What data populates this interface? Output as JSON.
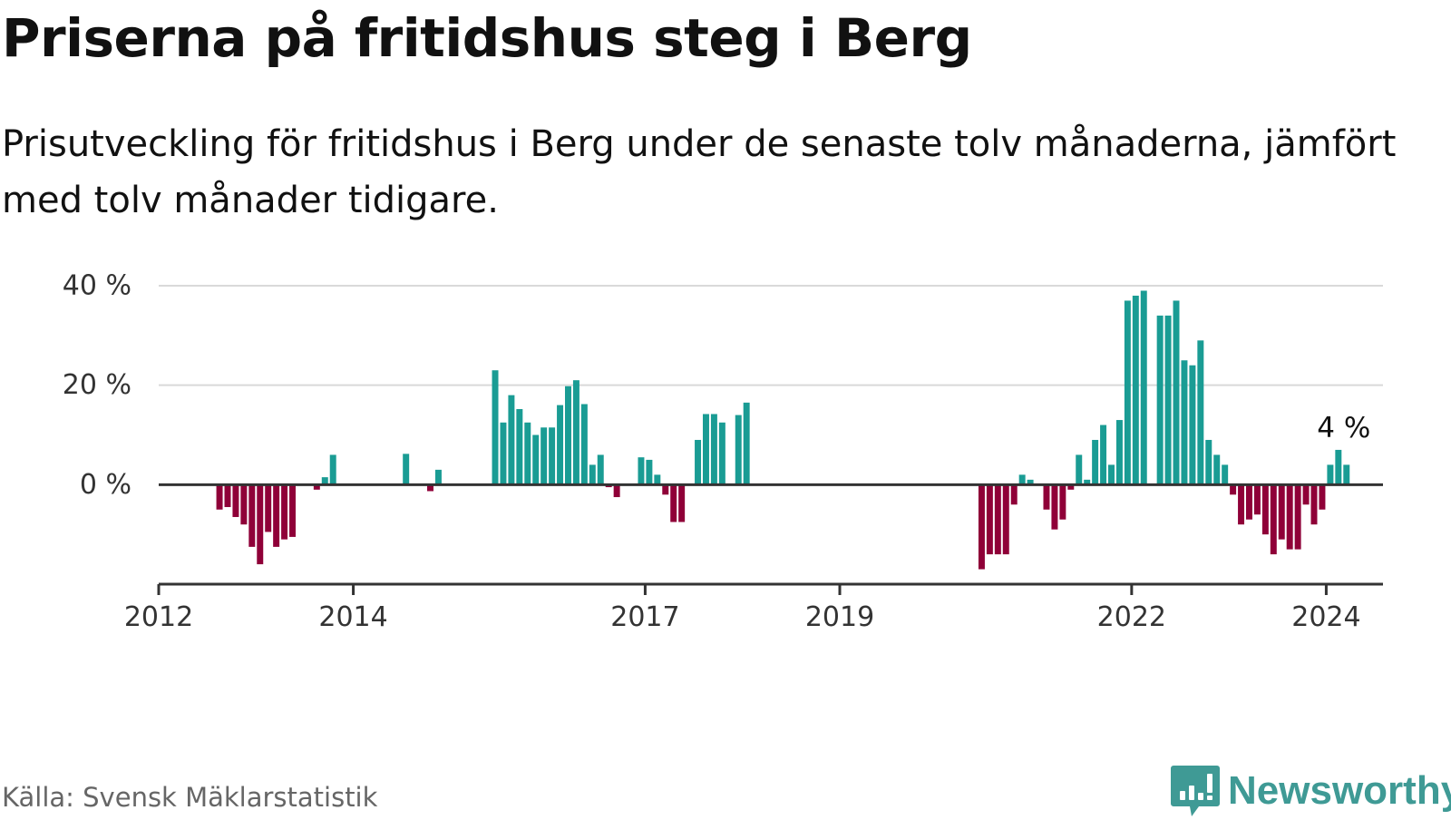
{
  "title": "Priserna på fritidshus steg i Berg",
  "subtitle": "Prisutveckling för fritidshus i Berg under de senaste tolv månaderna, jämfört med tolv månader tidigare.",
  "source": "Källa: Svensk Mäklarstatistik",
  "brand": "Newsworthy",
  "colors": {
    "positive": "#1a9c94",
    "negative": "#8f0038",
    "grid": "#d9d9d9",
    "axis": "#333333",
    "brand": "#3f9a95"
  },
  "chart_data": {
    "type": "bar",
    "title": "Priserna på fritidshus steg i Berg",
    "xlabel": "",
    "ylabel": "",
    "ylim": [
      -20,
      40
    ],
    "y_ticks": [
      {
        "value": 0,
        "label": "0 %"
      },
      {
        "value": 20,
        "label": "20 %"
      },
      {
        "value": 40,
        "label": "40 %"
      }
    ],
    "x_ticks": [
      {
        "date": "2012-01",
        "label": "2012"
      },
      {
        "date": "2014-01",
        "label": "2014"
      },
      {
        "date": "2017-01",
        "label": "2017"
      },
      {
        "date": "2019-01",
        "label": "2019"
      },
      {
        "date": "2022-01",
        "label": "2022"
      },
      {
        "date": "2024-01",
        "label": "2024"
      }
    ],
    "x_range": [
      "2012-01",
      "2024-08"
    ],
    "annotation": {
      "date": "2024-02",
      "value": 7,
      "label": "4 %"
    },
    "series": [
      {
        "name": "Prisutveckling",
        "points": [
          {
            "date": "2012-08",
            "value": -5
          },
          {
            "date": "2012-09",
            "value": -4.5
          },
          {
            "date": "2012-10",
            "value": -6.5
          },
          {
            "date": "2012-11",
            "value": -8
          },
          {
            "date": "2012-12",
            "value": -12.5
          },
          {
            "date": "2013-01",
            "value": -16
          },
          {
            "date": "2013-02",
            "value": -9.5
          },
          {
            "date": "2013-03",
            "value": -12.5
          },
          {
            "date": "2013-04",
            "value": -11
          },
          {
            "date": "2013-05",
            "value": -10.5
          },
          {
            "date": "2013-08",
            "value": -1
          },
          {
            "date": "2013-09",
            "value": 1.5
          },
          {
            "date": "2013-10",
            "value": 6
          },
          {
            "date": "2014-07",
            "value": 6.2
          },
          {
            "date": "2014-10",
            "value": -1.3
          },
          {
            "date": "2014-11",
            "value": 3
          },
          {
            "date": "2015-06",
            "value": 23
          },
          {
            "date": "2015-07",
            "value": 12.5
          },
          {
            "date": "2015-08",
            "value": 18
          },
          {
            "date": "2015-09",
            "value": 15.2
          },
          {
            "date": "2015-10",
            "value": 12.5
          },
          {
            "date": "2015-11",
            "value": 10
          },
          {
            "date": "2015-12",
            "value": 11.5
          },
          {
            "date": "2016-01",
            "value": 11.5
          },
          {
            "date": "2016-02",
            "value": 16
          },
          {
            "date": "2016-03",
            "value": 19.8
          },
          {
            "date": "2016-04",
            "value": 21
          },
          {
            "date": "2016-05",
            "value": 16.2
          },
          {
            "date": "2016-06",
            "value": 4
          },
          {
            "date": "2016-07",
            "value": 6
          },
          {
            "date": "2016-08",
            "value": -0.5
          },
          {
            "date": "2016-09",
            "value": -2.5
          },
          {
            "date": "2016-12",
            "value": 5.5
          },
          {
            "date": "2017-01",
            "value": 5
          },
          {
            "date": "2017-02",
            "value": 2
          },
          {
            "date": "2017-03",
            "value": -2
          },
          {
            "date": "2017-04",
            "value": -7.5
          },
          {
            "date": "2017-05",
            "value": -7.5
          },
          {
            "date": "2017-07",
            "value": 9
          },
          {
            "date": "2017-08",
            "value": 14.2
          },
          {
            "date": "2017-09",
            "value": 14.2
          },
          {
            "date": "2017-10",
            "value": 12.5
          },
          {
            "date": "2017-12",
            "value": 14
          },
          {
            "date": "2018-01",
            "value": 16.5
          },
          {
            "date": "2020-06",
            "value": -17
          },
          {
            "date": "2020-07",
            "value": -14
          },
          {
            "date": "2020-08",
            "value": -14
          },
          {
            "date": "2020-09",
            "value": -14
          },
          {
            "date": "2020-10",
            "value": -4
          },
          {
            "date": "2020-11",
            "value": 2
          },
          {
            "date": "2020-12",
            "value": 1
          },
          {
            "date": "2021-02",
            "value": -5
          },
          {
            "date": "2021-03",
            "value": -9
          },
          {
            "date": "2021-04",
            "value": -7
          },
          {
            "date": "2021-05",
            "value": -1
          },
          {
            "date": "2021-06",
            "value": 6
          },
          {
            "date": "2021-07",
            "value": 1
          },
          {
            "date": "2021-08",
            "value": 9
          },
          {
            "date": "2021-09",
            "value": 12
          },
          {
            "date": "2021-10",
            "value": 4
          },
          {
            "date": "2021-11",
            "value": 13
          },
          {
            "date": "2021-12",
            "value": 37
          },
          {
            "date": "2022-01",
            "value": 38
          },
          {
            "date": "2022-02",
            "value": 39
          },
          {
            "date": "2022-04",
            "value": 34
          },
          {
            "date": "2022-05",
            "value": 34
          },
          {
            "date": "2022-06",
            "value": 37
          },
          {
            "date": "2022-07",
            "value": 25
          },
          {
            "date": "2022-08",
            "value": 24
          },
          {
            "date": "2022-09",
            "value": 29
          },
          {
            "date": "2022-10",
            "value": 9
          },
          {
            "date": "2022-11",
            "value": 6
          },
          {
            "date": "2022-12",
            "value": 4
          },
          {
            "date": "2023-01",
            "value": -2
          },
          {
            "date": "2023-02",
            "value": -8
          },
          {
            "date": "2023-03",
            "value": -7
          },
          {
            "date": "2023-04",
            "value": -6
          },
          {
            "date": "2023-05",
            "value": -10
          },
          {
            "date": "2023-06",
            "value": -14
          },
          {
            "date": "2023-07",
            "value": -11
          },
          {
            "date": "2023-08",
            "value": -13
          },
          {
            "date": "2023-09",
            "value": -13
          },
          {
            "date": "2023-10",
            "value": -4
          },
          {
            "date": "2023-11",
            "value": -8
          },
          {
            "date": "2023-12",
            "value": -5
          },
          {
            "date": "2024-01",
            "value": 4
          },
          {
            "date": "2024-02",
            "value": 7
          },
          {
            "date": "2024-03",
            "value": 4
          }
        ]
      }
    ]
  }
}
